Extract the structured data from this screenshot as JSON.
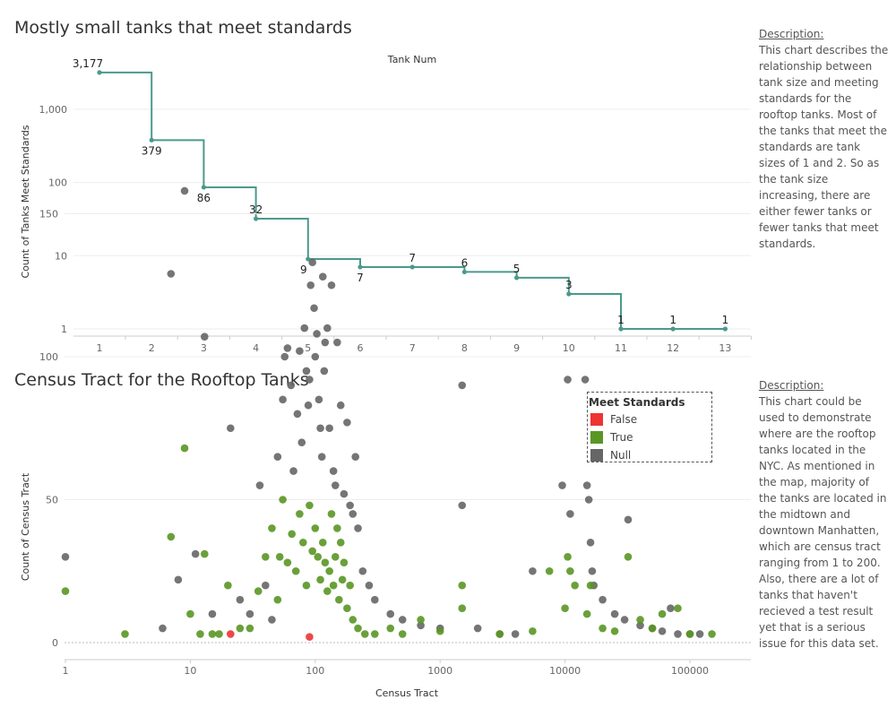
{
  "top": {
    "title": "Mostly small tanks that meet standards",
    "description_head": "Description:",
    "description_body": "This chart describes the relationship between tank size and meeting standards for the rooftop tanks. Most of the tanks that meet the standards are tank sizes of 1 and 2. So as the tank size increasing, there are either fewer tanks or fewer tanks that meet standards."
  },
  "bottom": {
    "title": "Census Tract for the Rooftop Tanks",
    "description_head": "Description:",
    "description_body": "This chart could be used to demonstrate where are the rooftop tanks located in the NYC. As mentioned in the map, majority of the tanks are located in the midtown and downtown Manhatten, which are census tract ranging from 1 to 200. Also, there are a lot of tanks that haven't recieved a test result yet that is a serious issue for this data set.",
    "legend_title": "Meet Standards",
    "legend": [
      {
        "label": "False",
        "color": "#ee3333"
      },
      {
        "label": "True",
        "color": "#5a9624"
      },
      {
        "label": "Null",
        "color": "#666666"
      }
    ]
  },
  "chart_data": [
    {
      "type": "line",
      "title": "Mostly small tanks that meet standards",
      "xlabel": "Tank Num",
      "ylabel": "Count of Tanks Meet Standards",
      "yscale": "log",
      "color": "#4a9a8c",
      "x": [
        1,
        2,
        3,
        4,
        5,
        6,
        7,
        8,
        9,
        10,
        11,
        12,
        13
      ],
      "values": [
        3177,
        379,
        86,
        32,
        9,
        7,
        7,
        6,
        5,
        3,
        1,
        1,
        1
      ],
      "data_labels": [
        "3,177",
        "379",
        "86",
        "32",
        "9",
        "7",
        "7",
        "6",
        "5",
        "3",
        "1",
        "1",
        "1"
      ],
      "x_ticks": [
        "1",
        "2",
        "3",
        "4",
        "5",
        "6",
        "7",
        "8",
        "9",
        "10",
        "11",
        "12",
        "13"
      ],
      "y_ticks": [
        {
          "v": 1,
          "label": "1"
        },
        {
          "v": 10,
          "label": "10"
        },
        {
          "v": 100,
          "label": "100"
        },
        {
          "v": 1000,
          "label": "1,000"
        }
      ]
    },
    {
      "type": "scatter",
      "title": "Census Tract for the Rooftop Tanks",
      "xlabel": "Census Tract",
      "ylabel": "Count of Census Tract",
      "xscale": "log",
      "ylim": [
        0,
        170
      ],
      "x_ticks": [
        {
          "v": 1,
          "label": "1"
        },
        {
          "v": 10,
          "label": "10"
        },
        {
          "v": 100,
          "label": "100"
        },
        {
          "v": 1000,
          "label": "1000"
        },
        {
          "v": 10000,
          "label": "10000"
        },
        {
          "v": 100000,
          "label": "100000"
        }
      ],
      "y_ticks": [
        {
          "v": 0,
          "label": "0"
        },
        {
          "v": 50,
          "label": "50"
        },
        {
          "v": 100,
          "label": "100"
        },
        {
          "v": 150,
          "label": "150"
        }
      ],
      "legend_title": "Meet Standards",
      "legend_position": "top-right",
      "series": [
        {
          "name": "Null",
          "color": "#666666",
          "points": [
            [
              1,
              30
            ],
            [
              7,
              129
            ],
            [
              9,
              158
            ],
            [
              13,
              107
            ],
            [
              21,
              75
            ],
            [
              11,
              31
            ],
            [
              36,
              55
            ],
            [
              50,
              65
            ],
            [
              55,
              85
            ],
            [
              57,
              100
            ],
            [
              60,
              103
            ],
            [
              64,
              90
            ],
            [
              67,
              60
            ],
            [
              72,
              80
            ],
            [
              75,
              102
            ],
            [
              78,
              70
            ],
            [
              82,
              110
            ],
            [
              85,
              95
            ],
            [
              88,
              83
            ],
            [
              90,
              92
            ],
            [
              92,
              125
            ],
            [
              95,
              133
            ],
            [
              98,
              117
            ],
            [
              100,
              100
            ],
            [
              103,
              108
            ],
            [
              107,
              85
            ],
            [
              110,
              75
            ],
            [
              113,
              65
            ],
            [
              115,
              128
            ],
            [
              118,
              95
            ],
            [
              120,
              105
            ],
            [
              125,
              110
            ],
            [
              130,
              75
            ],
            [
              135,
              125
            ],
            [
              140,
              60
            ],
            [
              145,
              55
            ],
            [
              150,
              105
            ],
            [
              160,
              83
            ],
            [
              170,
              52
            ],
            [
              180,
              77
            ],
            [
              190,
              48
            ],
            [
              200,
              45
            ],
            [
              210,
              65
            ],
            [
              220,
              40
            ],
            [
              240,
              25
            ],
            [
              270,
              20
            ],
            [
              300,
              15
            ],
            [
              400,
              10
            ],
            [
              500,
              8
            ],
            [
              700,
              6
            ],
            [
              1000,
              5
            ],
            [
              1500,
              90
            ],
            [
              1500,
              48
            ],
            [
              2000,
              5
            ],
            [
              3000,
              3
            ],
            [
              4000,
              3
            ],
            [
              5500,
              25
            ],
            [
              10500,
              92
            ],
            [
              9500,
              55
            ],
            [
              11000,
              45
            ],
            [
              14500,
              92
            ],
            [
              15000,
              55
            ],
            [
              15500,
              50
            ],
            [
              16000,
              35
            ],
            [
              16500,
              25
            ],
            [
              17000,
              20
            ],
            [
              20000,
              15
            ],
            [
              25000,
              10
            ],
            [
              30000,
              8
            ],
            [
              32000,
              43
            ],
            [
              40000,
              6
            ],
            [
              50000,
              5
            ],
            [
              60000,
              4
            ],
            [
              70000,
              12
            ],
            [
              80000,
              3
            ],
            [
              100000,
              3
            ],
            [
              120000,
              3
            ],
            [
              6,
              5
            ],
            [
              8,
              22
            ],
            [
              15,
              10
            ],
            [
              25,
              15
            ],
            [
              30,
              10
            ],
            [
              40,
              20
            ],
            [
              45,
              8
            ]
          ]
        },
        {
          "name": "True",
          "color": "#5a9624",
          "points": [
            [
              1,
              18
            ],
            [
              3,
              3
            ],
            [
              7,
              37
            ],
            [
              9,
              68
            ],
            [
              13,
              31
            ],
            [
              10,
              10
            ],
            [
              12,
              3
            ],
            [
              15,
              3
            ],
            [
              17,
              3
            ],
            [
              20,
              20
            ],
            [
              25,
              5
            ],
            [
              30,
              5
            ],
            [
              35,
              18
            ],
            [
              40,
              30
            ],
            [
              45,
              40
            ],
            [
              50,
              15
            ],
            [
              52,
              30
            ],
            [
              55,
              50
            ],
            [
              60,
              28
            ],
            [
              65,
              38
            ],
            [
              70,
              25
            ],
            [
              75,
              45
            ],
            [
              80,
              35
            ],
            [
              85,
              20
            ],
            [
              90,
              48
            ],
            [
              95,
              32
            ],
            [
              100,
              40
            ],
            [
              105,
              30
            ],
            [
              110,
              22
            ],
            [
              115,
              35
            ],
            [
              120,
              28
            ],
            [
              125,
              18
            ],
            [
              130,
              25
            ],
            [
              135,
              45
            ],
            [
              140,
              20
            ],
            [
              145,
              30
            ],
            [
              150,
              40
            ],
            [
              155,
              15
            ],
            [
              160,
              35
            ],
            [
              165,
              22
            ],
            [
              170,
              28
            ],
            [
              180,
              12
            ],
            [
              190,
              20
            ],
            [
              200,
              8
            ],
            [
              220,
              5
            ],
            [
              250,
              3
            ],
            [
              300,
              3
            ],
            [
              400,
              5
            ],
            [
              500,
              3
            ],
            [
              700,
              8
            ],
            [
              1000,
              4
            ],
            [
              1500,
              20
            ],
            [
              1500,
              12
            ],
            [
              3000,
              3
            ],
            [
              5500,
              4
            ],
            [
              7500,
              25
            ],
            [
              10000,
              12
            ],
            [
              10500,
              30
            ],
            [
              11000,
              25
            ],
            [
              12000,
              20
            ],
            [
              15000,
              10
            ],
            [
              16000,
              20
            ],
            [
              20000,
              5
            ],
            [
              25000,
              4
            ],
            [
              32000,
              30
            ],
            [
              40000,
              8
            ],
            [
              50000,
              5
            ],
            [
              60000,
              10
            ],
            [
              80000,
              12
            ],
            [
              100000,
              3
            ],
            [
              150000,
              3
            ]
          ]
        },
        {
          "name": "False",
          "color": "#ee3333",
          "points": [
            [
              21,
              3
            ],
            [
              90,
              2
            ]
          ]
        }
      ]
    }
  ]
}
